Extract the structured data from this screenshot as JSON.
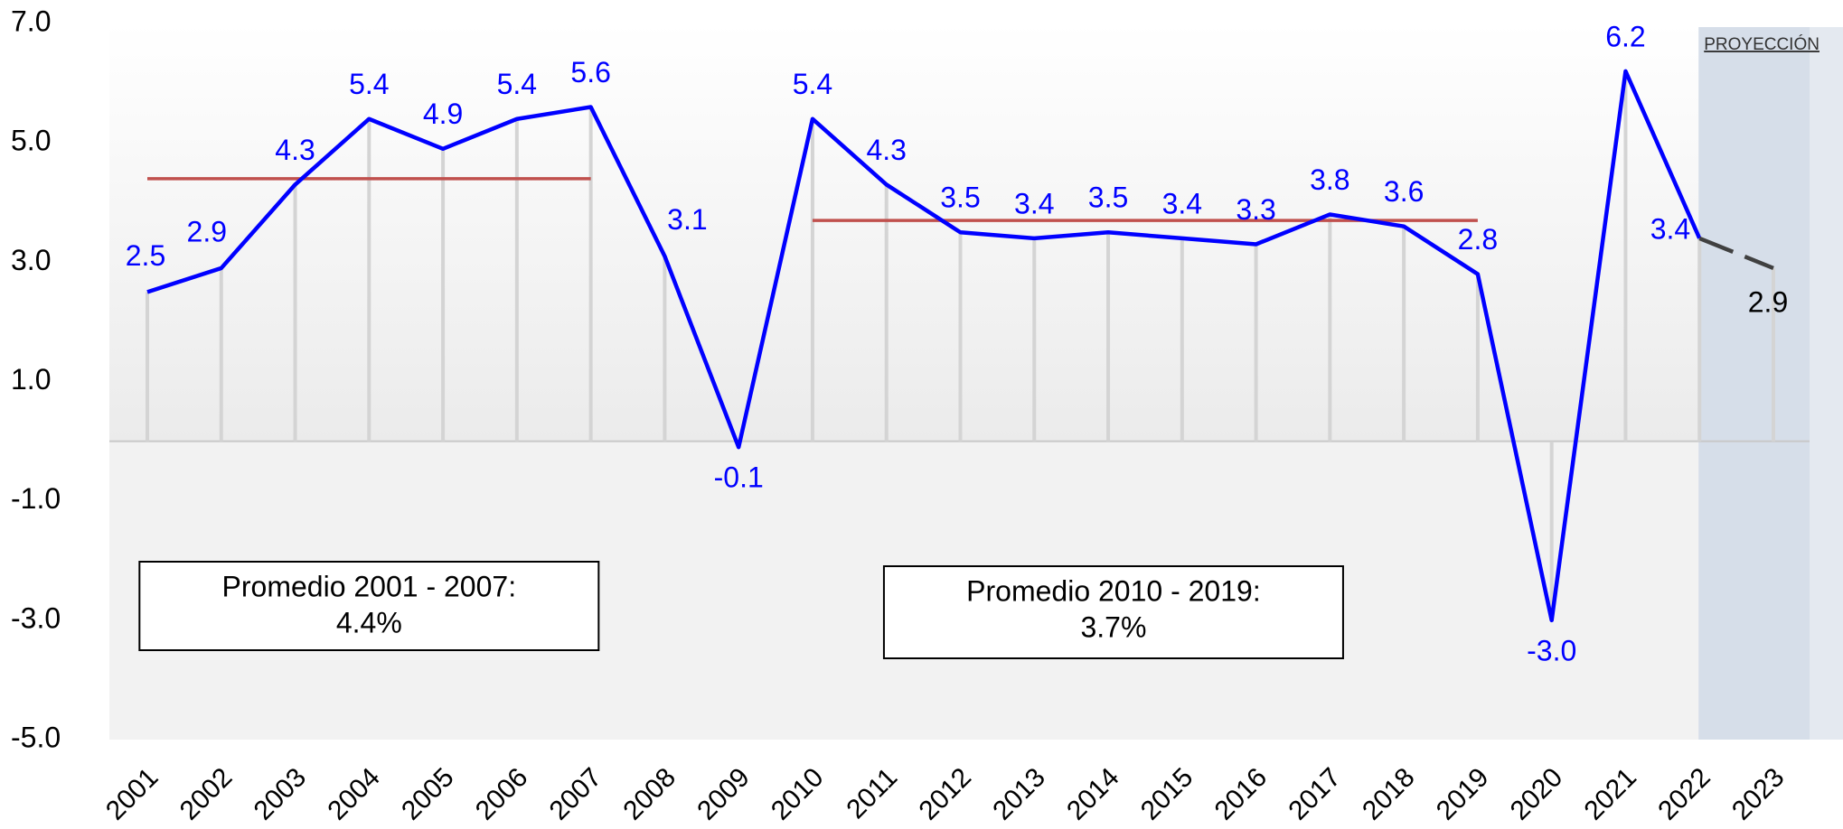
{
  "chart_data": {
    "type": "line",
    "categories": [
      "2001",
      "2002",
      "2003",
      "2004",
      "2005",
      "2006",
      "2007",
      "2008",
      "2009",
      "2010",
      "2011",
      "2012",
      "2013",
      "2014",
      "2015",
      "2016",
      "2017",
      "2018",
      "2019",
      "2020",
      "2021",
      "2022",
      "2023"
    ],
    "series": [
      {
        "color": "#0000ff",
        "values": [
          2.5,
          2.9,
          4.3,
          5.4,
          4.9,
          5.4,
          5.6,
          3.1,
          -0.1,
          5.4,
          4.3,
          3.5,
          3.4,
          3.5,
          3.4,
          3.3,
          3.8,
          3.6,
          2.8,
          -3.0,
          6.2,
          3.4,
          2.9
        ],
        "value_labels": [
          "2.5",
          "2.9",
          "4.3",
          "5.4",
          "4.9",
          "5.4",
          "5.6",
          "3.1",
          "-0.1",
          "5.4",
          "4.3",
          "3.5",
          "3.4",
          "3.5",
          "3.4",
          "3.3",
          "3.8",
          "3.6",
          "2.8",
          "-3.0",
          "6.2",
          "3.4",
          "2.9"
        ]
      }
    ],
    "ylim": [
      -5,
      7
    ],
    "yticks": [
      {
        "value": 7,
        "label": "7.0"
      },
      {
        "value": 5,
        "label": "5.0"
      },
      {
        "value": 3,
        "label": "3.0"
      },
      {
        "value": 1,
        "label": "1.0"
      },
      {
        "value": -1,
        "label": "-1.0"
      },
      {
        "value": -3,
        "label": "-3.0"
      },
      {
        "value": -5,
        "label": "-5.0"
      }
    ],
    "averages": [
      {
        "label": "Promedio 2001 - 2007:",
        "value": 4.4,
        "value_label": "4.4%",
        "range": [
          "2001",
          "2007"
        ],
        "color": "#c0504d"
      },
      {
        "label": "Promedio 2010 - 2019:",
        "value": 3.7,
        "value_label": "3.7%",
        "range": [
          "2010",
          "2019"
        ],
        "color": "#c0504d"
      }
    ],
    "projection": {
      "label": "PROYECCIÓN",
      "from": "2022",
      "color": "#404040"
    }
  }
}
